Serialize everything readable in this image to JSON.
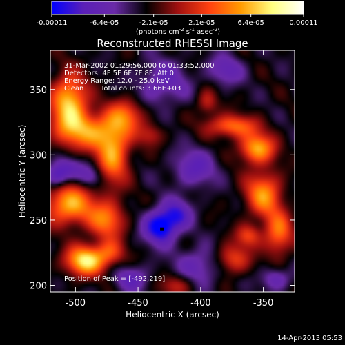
{
  "colorbar": {
    "tick_labels": [
      "-0.00011",
      "-6.4e-05",
      "-2.1e-05",
      "2.1e-05",
      "6.4e-05",
      "0.00011"
    ],
    "tick_values": [
      -0.00011,
      -6.4e-05,
      -2.1e-05,
      2.1e-05,
      6.4e-05,
      0.00011
    ],
    "range": [
      -0.00011,
      0.00011
    ],
    "units_prefix": "(photons cm",
    "units_sup1": "-2",
    "units_mid1": " s",
    "units_sup2": "-1",
    "units_mid2": " asec",
    "units_sup3": "-2",
    "units_suffix": ")",
    "colors": [
      "#0000ff",
      "#5a1fb8",
      "#6a2aa8",
      "#000000",
      "#a01010",
      "#ff4010",
      "#ff9a00",
      "#ffff80",
      "#ffffff"
    ]
  },
  "chart_data": {
    "type": "heatmap",
    "title": "Reconstructed RHESSI Image",
    "xlabel": "Heliocentric X (arcsec)",
    "ylabel": "Heliocentric Y (arcsec)",
    "xlim": [
      -520,
      -325
    ],
    "ylim": [
      195,
      380
    ],
    "x_ticks": [
      -500,
      -450,
      -400,
      -350
    ],
    "x_tick_labels": [
      "-500",
      "-450",
      "-400",
      "-350"
    ],
    "y_ticks": [
      200,
      250,
      300,
      350
    ],
    "y_tick_labels": [
      "200",
      "250",
      "300",
      "350"
    ],
    "info_lines": [
      "31-Mar-2002 01:29:56.000 to 01:33:52.000",
      "Detectors: 4F 5F 6F 7F 8F, Att 0",
      "Energy Range: 12.0 - 25.0 keV"
    ],
    "clean_label": "Clean",
    "total_counts": "Total counts: 3.66E+03",
    "peak_label": "Position of Peak = [-492,219]",
    "peak": [
      -492,
      219
    ],
    "marker": [
      -431,
      243
    ],
    "blobs": [
      {
        "x": -505,
        "y": 340,
        "sx": 10,
        "sy": 15,
        "v": 0.0001
      },
      {
        "x": -490,
        "y": 318,
        "sx": 18,
        "sy": 10,
        "v": 7.5e-05
      },
      {
        "x": -470,
        "y": 300,
        "sx": 9,
        "sy": 16,
        "v": 8e-05
      },
      {
        "x": -460,
        "y": 330,
        "sx": 10,
        "sy": 9,
        "v": 6e-05
      },
      {
        "x": -505,
        "y": 262,
        "sx": 14,
        "sy": 11,
        "v": 9e-05
      },
      {
        "x": -475,
        "y": 250,
        "sx": 10,
        "sy": 10,
        "v": 7e-05
      },
      {
        "x": -492,
        "y": 219,
        "sx": 11,
        "sy": 8,
        "v": 0.00011
      },
      {
        "x": -472,
        "y": 225,
        "sx": 8,
        "sy": 7,
        "v": 5e-05
      },
      {
        "x": -355,
        "y": 305,
        "sx": 10,
        "sy": 8,
        "v": 9e-05
      },
      {
        "x": -375,
        "y": 322,
        "sx": 14,
        "sy": 6,
        "v": 7e-05
      },
      {
        "x": -350,
        "y": 270,
        "sx": 10,
        "sy": 12,
        "v": 8e-05
      },
      {
        "x": -338,
        "y": 240,
        "sx": 8,
        "sy": 12,
        "v": 7e-05
      },
      {
        "x": -375,
        "y": 220,
        "sx": 10,
        "sy": 8,
        "v": 6e-05
      },
      {
        "x": -362,
        "y": 238,
        "sx": 7,
        "sy": 6,
        "v": 5e-05
      },
      {
        "x": -420,
        "y": 200,
        "sx": 9,
        "sy": 6,
        "v": 4e-05
      },
      {
        "x": -395,
        "y": 340,
        "sx": 6,
        "sy": 7,
        "v": 4e-05
      },
      {
        "x": -440,
        "y": 315,
        "sx": 7,
        "sy": 6,
        "v": 3.5e-05
      },
      {
        "x": -505,
        "y": 290,
        "sx": 8,
        "sy": 6,
        "v": -4e-05
      },
      {
        "x": -515,
        "y": 283,
        "sx": 6,
        "sy": 6,
        "v": -6e-05
      },
      {
        "x": -488,
        "y": 283,
        "sx": 7,
        "sy": 6,
        "v": -4e-05
      },
      {
        "x": -432,
        "y": 245,
        "sx": 9,
        "sy": 9,
        "v": -9e-05
      },
      {
        "x": -418,
        "y": 255,
        "sx": 8,
        "sy": 8,
        "v": -5e-05
      },
      {
        "x": -405,
        "y": 290,
        "sx": 12,
        "sy": 10,
        "v": -4.5e-05
      },
      {
        "x": -430,
        "y": 355,
        "sx": 14,
        "sy": 12,
        "v": -4e-05
      },
      {
        "x": -380,
        "y": 365,
        "sx": 10,
        "sy": 8,
        "v": -4e-05
      },
      {
        "x": -400,
        "y": 215,
        "sx": 14,
        "sy": 10,
        "v": -4e-05
      },
      {
        "x": -455,
        "y": 205,
        "sx": 10,
        "sy": 7,
        "v": -4e-05
      },
      {
        "x": -340,
        "y": 205,
        "sx": 8,
        "sy": 6,
        "v": -4e-05
      }
    ]
  },
  "footer": {
    "timestamp": "14-Apr-2013 05:53"
  }
}
